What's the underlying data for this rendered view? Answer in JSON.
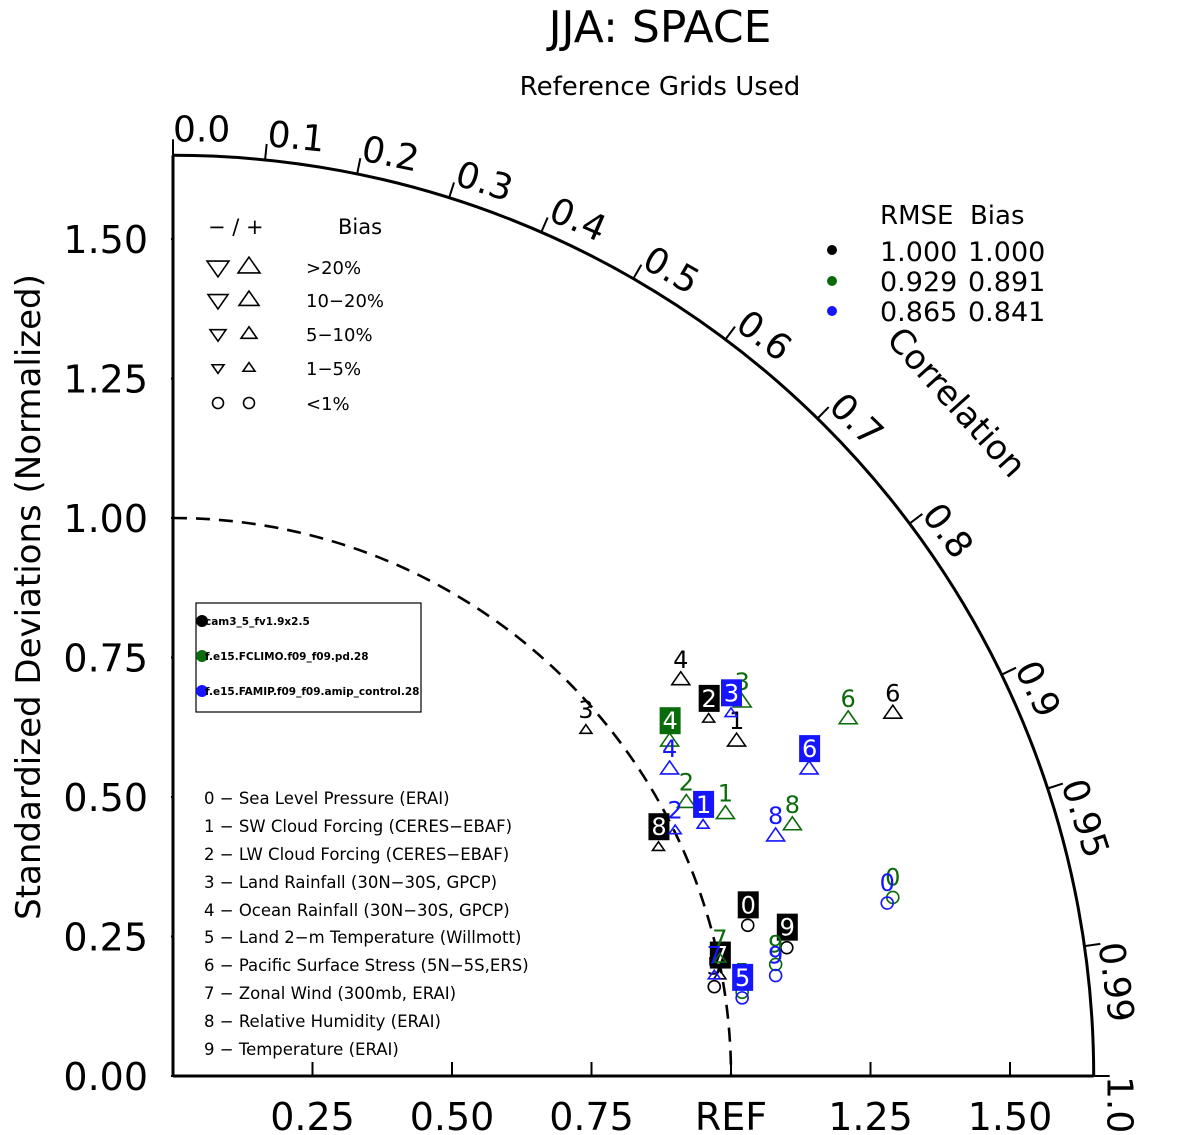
{
  "title": "JJA: SPACE",
  "subtitle": "Reference Grids Used",
  "colors": {
    "black": "#000000",
    "green": "#0a6b0a",
    "blue": "#1515ff"
  },
  "chart_data": {
    "type": "scatter",
    "subtype": "taylor-diagram",
    "ylabel": "Standardized Deviations (Normalized)",
    "arc_label": "Correlation",
    "ref_label": "REF",
    "max_std": 1.65,
    "y_ticks": [
      "0.00",
      "0.25",
      "0.50",
      "0.75",
      "1.00",
      "1.25",
      "1.50"
    ],
    "x_ticks": [
      "0.25",
      "0.50",
      "0.75",
      "REF",
      "1.25",
      "1.50"
    ],
    "corr_ticks": [
      "0.0",
      "0.1",
      "0.2",
      "0.3",
      "0.4",
      "0.5",
      "0.6",
      "0.7",
      "0.8",
      "0.9",
      "0.95",
      "0.99",
      "1.0"
    ],
    "bias_legend": {
      "header_sign": "− / +",
      "header_bias": "Bias",
      "rows": [
        ">20%",
        "10−20%",
        "5−10%",
        "1−5%",
        "<1%"
      ]
    },
    "rmse_legend": {
      "header": "RMSE  Bias",
      "rows": [
        {
          "color": "black",
          "rmse": "1.000",
          "bias": "1.000"
        },
        {
          "color": "green",
          "rmse": "0.929",
          "bias": "0.891"
        },
        {
          "color": "blue",
          "rmse": "0.865",
          "bias": "0.841"
        }
      ]
    },
    "cases": [
      {
        "name": "cam3_5_fv1.9x2.5",
        "color": "black"
      },
      {
        "name": "f.e15.FCLIMO.f09_f09.pd.28",
        "color": "green"
      },
      {
        "name": "f.e15.FAMIP.f09_f09.amip_control.28",
        "color": "blue"
      }
    ],
    "variables": [
      "0 − Sea Level Pressure (ERAI)",
      "1 − SW Cloud Forcing (CERES−EBAF)",
      "2 − LW Cloud Forcing (CERES−EBAF)",
      "3 − Land Rainfall (30N−30S, GPCP)",
      "4 − Ocean Rainfall (30N−30S, GPCP)",
      "5 − Land 2−m Temperature (Willmott)",
      "6 − Pacific Surface Stress (5N−5S,ERS)",
      "7 − Zonal Wind (300mb, ERAI)",
      "8 − Relative Humidity (ERAI)",
      "9 − Temperature (ERAI)"
    ],
    "points": [
      {
        "label": "0",
        "case": 0,
        "x": 1.03,
        "y": 0.27,
        "marker": "circle",
        "boxed": true
      },
      {
        "label": "1",
        "case": 0,
        "x": 1.01,
        "y": 0.6,
        "marker": "up-l",
        "boxed": false
      },
      {
        "label": "2",
        "case": 0,
        "x": 0.96,
        "y": 0.64,
        "marker": "up-s",
        "boxed": true
      },
      {
        "label": "3",
        "case": 0,
        "x": 0.74,
        "y": 0.62,
        "marker": "up-s",
        "boxed": false
      },
      {
        "label": "4",
        "case": 0,
        "x": 0.91,
        "y": 0.71,
        "marker": "up-l",
        "boxed": false
      },
      {
        "label": "5",
        "case": 0,
        "x": 0.97,
        "y": 0.16,
        "marker": "circle",
        "boxed": false
      },
      {
        "label": "6",
        "case": 0,
        "x": 1.29,
        "y": 0.65,
        "marker": "up-l",
        "boxed": false
      },
      {
        "label": "7",
        "case": 0,
        "x": 0.98,
        "y": 0.18,
        "marker": "up-s",
        "boxed": true
      },
      {
        "label": "8",
        "case": 0,
        "x": 0.87,
        "y": 0.41,
        "marker": "up-s",
        "boxed": true
      },
      {
        "label": "9",
        "case": 0,
        "x": 1.1,
        "y": 0.23,
        "marker": "circle",
        "boxed": true
      },
      {
        "label": "0",
        "case": 1,
        "x": 1.29,
        "y": 0.32,
        "marker": "circle",
        "boxed": false
      },
      {
        "label": "1",
        "case": 1,
        "x": 0.99,
        "y": 0.47,
        "marker": "up-l",
        "boxed": false
      },
      {
        "label": "2",
        "case": 1,
        "x": 0.92,
        "y": 0.49,
        "marker": "up-l",
        "boxed": false
      },
      {
        "label": "3",
        "case": 1,
        "x": 1.02,
        "y": 0.67,
        "marker": "up-l",
        "boxed": false
      },
      {
        "label": "4",
        "case": 1,
        "x": 0.89,
        "y": 0.6,
        "marker": "up-l",
        "boxed": true
      },
      {
        "label": "5",
        "case": 1,
        "x": 1.02,
        "y": 0.15,
        "marker": "circle",
        "boxed": false
      },
      {
        "label": "6",
        "case": 1,
        "x": 1.21,
        "y": 0.64,
        "marker": "up-l",
        "boxed": false
      },
      {
        "label": "7",
        "case": 1,
        "x": 0.98,
        "y": 0.21,
        "marker": "up-s",
        "boxed": false
      },
      {
        "label": "8",
        "case": 1,
        "x": 1.11,
        "y": 0.45,
        "marker": "up-l",
        "boxed": false
      },
      {
        "label": "9",
        "case": 1,
        "x": 1.08,
        "y": 0.2,
        "marker": "circle",
        "boxed": false
      },
      {
        "label": "0",
        "case": 2,
        "x": 1.28,
        "y": 0.31,
        "marker": "circle",
        "boxed": false
      },
      {
        "label": "1",
        "case": 2,
        "x": 0.95,
        "y": 0.45,
        "marker": "up-s",
        "boxed": true
      },
      {
        "label": "2",
        "case": 2,
        "x": 0.9,
        "y": 0.44,
        "marker": "up-s",
        "boxed": false
      },
      {
        "label": "3",
        "case": 2,
        "x": 1.0,
        "y": 0.65,
        "marker": "up-s",
        "boxed": true
      },
      {
        "label": "4",
        "case": 2,
        "x": 0.89,
        "y": 0.55,
        "marker": "up-l",
        "boxed": false
      },
      {
        "label": "5",
        "case": 2,
        "x": 1.02,
        "y": 0.14,
        "marker": "circle",
        "boxed": true
      },
      {
        "label": "6",
        "case": 2,
        "x": 1.14,
        "y": 0.55,
        "marker": "up-l",
        "boxed": true
      },
      {
        "label": "7",
        "case": 2,
        "x": 0.97,
        "y": 0.18,
        "marker": "up-s",
        "boxed": false
      },
      {
        "label": "8",
        "case": 2,
        "x": 1.08,
        "y": 0.43,
        "marker": "up-l",
        "boxed": false
      },
      {
        "label": "9",
        "case": 2,
        "x": 1.08,
        "y": 0.18,
        "marker": "circle",
        "boxed": false
      }
    ]
  }
}
